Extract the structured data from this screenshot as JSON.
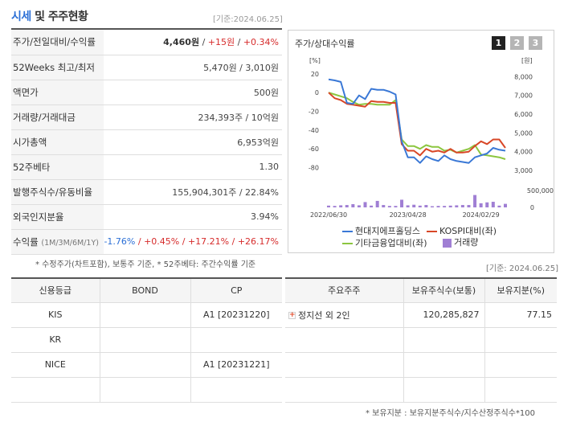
{
  "header": {
    "title_main": "시세",
    "title_rest": " 및 주주현황",
    "date": "[기준:2024.06.25]"
  },
  "info": {
    "rows": [
      {
        "label": "주가/전일대비/수익률"
      },
      {
        "label": "52Weeks 최고/최저",
        "value": "5,470원 / 3,010원"
      },
      {
        "label": "액면가",
        "value": "500원"
      },
      {
        "label": "거래량/거래대금",
        "value": "234,393주 / 10억원"
      },
      {
        "label": "시가총액",
        "value": "6,953억원"
      },
      {
        "label": "52주베타",
        "value": "1.30"
      },
      {
        "label": "발행주식수/유동비율",
        "value": "155,904,301주 / 22.84%"
      },
      {
        "label": "외국인지분율",
        "value": "3.94%"
      }
    ],
    "price": "4,460원",
    "sep1": " / ",
    "change": "+15원",
    "sep2": " / ",
    "change_rate": "+0.34%",
    "return_label": "수익률",
    "return_period": "(1M/3M/6M/1Y)",
    "returns": [
      "-1.76%",
      "/ +0.45%",
      "/ +17.21%",
      "/ +26.17%"
    ]
  },
  "chart": {
    "title": "주가/상대수익률",
    "pages": [
      "1",
      "2",
      "3"
    ],
    "legend": {
      "stock": "현대지에프홀딩스",
      "kospi": "KOSPI대비(좌)",
      "industry": "기타금융업대비(좌)",
      "volume": "거래량"
    },
    "colors": {
      "stock": "#3a78d6",
      "kospi": "#d84727",
      "industry": "#8cc63f",
      "volume": "#a07fd4"
    }
  },
  "chart_data": {
    "type": "line",
    "left_axis_unit": "[%]",
    "right_axis_unit": "[원]",
    "left_ticks": [
      "20",
      "0",
      "-20",
      "-40",
      "-60",
      "-80"
    ],
    "right_ticks": [
      "8,000",
      "7,000",
      "6,000",
      "5,000",
      "4,000",
      "3,000"
    ],
    "volume_ticks": [
      "500,000",
      "0"
    ],
    "ylim_left": [
      -95,
      25
    ],
    "ylim_right": [
      2400,
      8400
    ],
    "x_ticks": [
      "2022/06/30",
      "2023/04/28",
      "2024/02/29"
    ],
    "x_tick_index": [
      0,
      13,
      25
    ],
    "series": [
      {
        "name": "현대지에프홀딩스",
        "axis": "right",
        "values": [
          7850,
          7800,
          7720,
          6600,
          6550,
          7000,
          6800,
          7350,
          7300,
          7300,
          7200,
          7050,
          4550,
          3700,
          3700,
          3400,
          3750,
          3600,
          3500,
          3800,
          3600,
          3500,
          3450,
          3400,
          3700,
          3800,
          3900,
          4200,
          4100,
          4050
        ]
      },
      {
        "name": "KOSPI대비(좌)",
        "axis": "left",
        "values": [
          0,
          -6,
          -8,
          -12,
          -13,
          -14,
          -15,
          -9,
          -10,
          -10,
          -11,
          -11,
          -55,
          -62,
          -62,
          -67,
          -60,
          -63,
          -62,
          -64,
          -60,
          -64,
          -64,
          -63,
          -57,
          -52,
          -55,
          -50,
          -50,
          -59
        ]
      },
      {
        "name": "기타금융업대비(좌)",
        "axis": "left",
        "values": [
          0,
          -2,
          -4,
          -6,
          -10,
          -13,
          -12,
          -12,
          -13,
          -13,
          -13,
          -8,
          -50,
          -57,
          -57,
          -60,
          -56,
          -58,
          -58,
          -62,
          -61,
          -64,
          -62,
          -60,
          -56,
          -66,
          -67,
          -68,
          -69,
          -71
        ]
      },
      {
        "name": "거래량",
        "axis": "volume",
        "values": [
          60000,
          50000,
          70000,
          80000,
          110000,
          70000,
          180000,
          60000,
          220000,
          80000,
          50000,
          50000,
          260000,
          70000,
          90000,
          60000,
          80000,
          40000,
          50000,
          50000,
          60000,
          70000,
          80000,
          80000,
          420000,
          140000,
          170000,
          190000,
          60000,
          120000
        ]
      }
    ],
    "volume_max": 600000
  },
  "note1": "* 수정주가(차트포함), 보통주 기준, * 52주베타: 주간수익률 기준",
  "date2": "[기준: 2024.06.25]",
  "credit": {
    "headers": [
      "신용등급",
      "BOND",
      "CP"
    ],
    "rows": [
      {
        "agency": "KIS",
        "bond": "",
        "cp": "A1 [20231220]"
      },
      {
        "agency": "KR",
        "bond": "",
        "cp": ""
      },
      {
        "agency": "NICE",
        "bond": "",
        "cp": "A1 [20231221]"
      },
      {
        "agency": "",
        "bond": "",
        "cp": ""
      }
    ]
  },
  "holders": {
    "headers": [
      "주요주주",
      "보유주식수(보통)",
      "보유지분(%)"
    ],
    "rows": [
      {
        "name": "정지선 외 2인",
        "shares": "120,285,827",
        "pct": "77.15"
      }
    ]
  },
  "note2": "* 보유지분 : 보유지분주식수/지수산정주식수*100"
}
